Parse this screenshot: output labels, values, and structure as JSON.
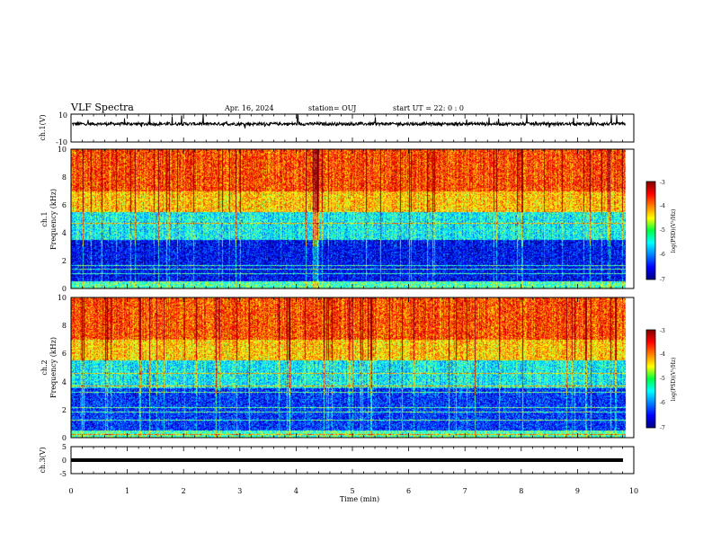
{
  "header": {
    "title": "VLF Spectra",
    "date": "Apr. 16, 2024",
    "station": "station= OUJ",
    "start_ut": "start UT =  22: 0  : 0"
  },
  "chart_data": [
    {
      "id": "ch1-waveform",
      "type": "line",
      "ylabel": "ch.1(V)",
      "ylim": [
        -10,
        10
      ],
      "y_tick_labels": [
        "10",
        "-10"
      ],
      "xlim": [
        0,
        10
      ],
      "baseline": 3,
      "typical_range": [
        1.5,
        5
      ],
      "spike_max": 10
    },
    {
      "id": "ch1-spectrogram",
      "type": "heatmap",
      "ylabel": "ch.1\nFrequency (kHz)",
      "ylim": [
        0,
        10
      ],
      "y_tick_labels": [
        "0",
        "2",
        "4",
        "6",
        "8",
        "10"
      ],
      "xlim": [
        0,
        10
      ],
      "colorbar": {
        "label": "log(PSD)(V²/Hz)",
        "range": [
          -7,
          -3
        ],
        "tick_labels": [
          "-3",
          "-4",
          "-5",
          "-6",
          "-7"
        ]
      },
      "description_levels": [
        {
          "freq_kHz": [
            0,
            0.5
          ],
          "log_psd": -5.2
        },
        {
          "freq_kHz": [
            0.5,
            3.5
          ],
          "log_psd": -6.5
        },
        {
          "freq_kHz": [
            3.5,
            5.5
          ],
          "log_psd": -5.5
        },
        {
          "freq_kHz": [
            5.5,
            7
          ],
          "log_psd": -4.3
        },
        {
          "freq_kHz": [
            7,
            10
          ],
          "log_psd": -3.8
        }
      ]
    },
    {
      "id": "ch2-spectrogram",
      "type": "heatmap",
      "ylabel": "ch.2\nFrequency (kHz)",
      "ylim": [
        0,
        10
      ],
      "y_tick_labels": [
        "0",
        "2",
        "4",
        "6",
        "8",
        "10"
      ],
      "xlim": [
        0,
        10
      ],
      "colorbar": {
        "label": "log(PSD)(V²/Hz)",
        "range": [
          -7,
          -3
        ],
        "tick_labels": [
          "-3",
          "-4",
          "-5",
          "-6",
          "-7"
        ]
      },
      "description_levels": [
        {
          "freq_kHz": [
            0,
            0.5
          ],
          "log_psd": -5.2
        },
        {
          "freq_kHz": [
            0.5,
            3.5
          ],
          "log_psd": -6.3
        },
        {
          "freq_kHz": [
            3.5,
            5.5
          ],
          "log_psd": -5.5
        },
        {
          "freq_kHz": [
            5.5,
            7
          ],
          "log_psd": -4.3
        },
        {
          "freq_kHz": [
            7,
            10
          ],
          "log_psd": -3.8
        }
      ]
    },
    {
      "id": "ch3-waveform",
      "type": "line",
      "ylabel": "ch.3(V)",
      "ylim": [
        -5,
        5
      ],
      "y_tick_labels": [
        "5",
        "0",
        "-5"
      ],
      "xlim": [
        0,
        10
      ],
      "baseline": 0,
      "xlabel": "Time (min)",
      "x_tick_labels": [
        "0",
        "1",
        "2",
        "3",
        "4",
        "5",
        "6",
        "7",
        "8",
        "9",
        "10"
      ]
    }
  ],
  "data_end_min": 9.85
}
